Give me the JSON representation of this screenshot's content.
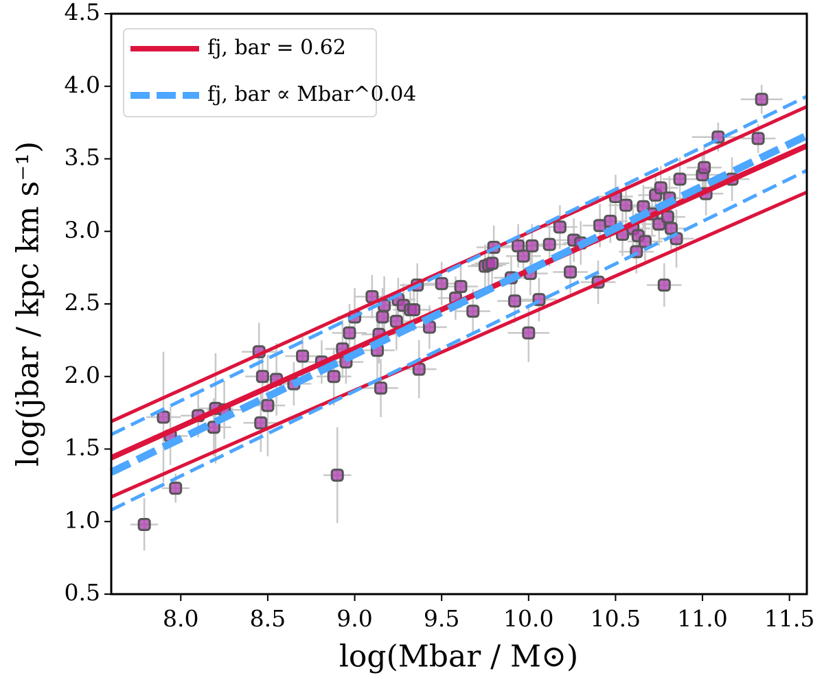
{
  "chart_data": {
    "type": "scatter",
    "xlabel": "log(Mbar / M⊙)",
    "ylabel": "log(jbar / kpc km s⁻¹)",
    "xlim": [
      7.6,
      11.6
    ],
    "ylim": [
      0.5,
      4.5
    ],
    "xticks": [
      {
        "value": 8,
        "label": "8.0"
      },
      8.5,
      {
        "value": 9,
        "label": "9.0"
      },
      9.5,
      {
        "value": 10,
        "label": "10.0"
      },
      10.5,
      {
        "value": 11,
        "label": "11.0"
      },
      11.5
    ],
    "yticks": [
      0.5,
      {
        "value": 1,
        "label": "1.0"
      },
      1.5,
      {
        "value": 2,
        "label": "2.0"
      },
      2.5,
      {
        "value": 3,
        "label": "3.0"
      },
      3.5,
      {
        "value": 4,
        "label": "4.0"
      },
      4.5
    ],
    "legend": "upper left",
    "points": {
      "color": "#b145b1",
      "edgecolor": "#555555",
      "errcolor": "#c8c8c8",
      "x": [
        7.79,
        7.9,
        7.94,
        7.97,
        8.1,
        8.19,
        8.2,
        8.25,
        8.45,
        8.46,
        8.47,
        8.5,
        8.55,
        8.65,
        8.7,
        8.81,
        8.88,
        8.9,
        8.93,
        8.95,
        8.97,
        9.0,
        9.1,
        9.13,
        9.14,
        9.15,
        9.16,
        9.17,
        9.24,
        9.25,
        9.28,
        9.32,
        9.34,
        9.36,
        9.37,
        9.43,
        9.5,
        9.58,
        9.61,
        9.68,
        9.75,
        9.77,
        9.79,
        9.8,
        9.9,
        9.92,
        9.94,
        9.97,
        10.0,
        10.01,
        10.02,
        10.06,
        10.12,
        10.18,
        10.24,
        10.26,
        10.3,
        10.4,
        10.41,
        10.47,
        10.5,
        10.54,
        10.56,
        10.6,
        10.62,
        10.63,
        10.66,
        10.67,
        10.71,
        10.73,
        10.75,
        10.76,
        10.78,
        10.8,
        10.81,
        10.82,
        10.85,
        10.87,
        11.0,
        11.01,
        11.02,
        11.09,
        11.17,
        11.32,
        11.34
      ],
      "y": [
        0.98,
        1.72,
        1.59,
        1.23,
        1.73,
        1.65,
        1.78,
        1.77,
        2.17,
        1.68,
        2.0,
        1.8,
        1.98,
        1.95,
        2.14,
        2.1,
        2.0,
        1.32,
        2.19,
        2.1,
        2.3,
        2.41,
        2.55,
        2.18,
        2.29,
        1.92,
        2.41,
        2.49,
        2.38,
        2.53,
        2.49,
        2.46,
        2.46,
        2.63,
        2.05,
        2.34,
        2.64,
        2.54,
        2.62,
        2.45,
        2.76,
        2.77,
        2.78,
        2.89,
        2.68,
        2.52,
        2.9,
        2.83,
        2.3,
        2.71,
        2.9,
        2.53,
        2.91,
        3.03,
        2.72,
        2.94,
        2.92,
        2.65,
        3.04,
        3.07,
        3.24,
        2.98,
        3.18,
        3.02,
        2.86,
        2.97,
        3.17,
        2.93,
        3.12,
        3.25,
        3.05,
        3.3,
        2.63,
        3.1,
        3.23,
        3.02,
        2.95,
        3.36,
        3.39,
        3.44,
        3.26,
        3.65,
        3.36,
        3.64,
        3.91
      ],
      "xerr": [
        0.08,
        0.1,
        0.1,
        0.08,
        0.1,
        0.1,
        0.1,
        0.1,
        0.1,
        0.1,
        0.1,
        0.1,
        0.1,
        0.1,
        0.1,
        0.1,
        0.1,
        0.08,
        0.1,
        0.1,
        0.1,
        0.1,
        0.1,
        0.1,
        0.1,
        0.1,
        0.1,
        0.1,
        0.1,
        0.1,
        0.1,
        0.1,
        0.1,
        0.1,
        0.1,
        0.1,
        0.1,
        0.1,
        0.1,
        0.1,
        0.1,
        0.1,
        0.1,
        0.1,
        0.1,
        0.1,
        0.1,
        0.1,
        0.12,
        0.1,
        0.1,
        0.1,
        0.1,
        0.1,
        0.1,
        0.1,
        0.1,
        0.1,
        0.1,
        0.1,
        0.1,
        0.1,
        0.1,
        0.1,
        0.1,
        0.1,
        0.1,
        0.1,
        0.1,
        0.1,
        0.1,
        0.1,
        0.1,
        0.1,
        0.1,
        0.1,
        0.1,
        0.1,
        0.1,
        0.1,
        0.1,
        0.15,
        0.1,
        0.1,
        0.12
      ],
      "yerr": [
        0.18,
        0.45,
        0.2,
        0.1,
        0.15,
        0.2,
        0.38,
        0.2,
        0.2,
        0.2,
        0.2,
        0.35,
        0.25,
        0.15,
        0.15,
        0.15,
        0.2,
        0.33,
        0.2,
        0.15,
        0.2,
        0.2,
        0.15,
        0.2,
        0.2,
        0.2,
        0.2,
        0.2,
        0.2,
        0.15,
        0.15,
        0.15,
        0.15,
        0.15,
        0.2,
        0.15,
        0.15,
        0.15,
        0.15,
        0.15,
        0.15,
        0.15,
        0.15,
        0.15,
        0.15,
        0.15,
        0.15,
        0.15,
        0.2,
        0.15,
        0.15,
        0.15,
        0.15,
        0.15,
        0.15,
        0.15,
        0.15,
        0.15,
        0.15,
        0.15,
        0.15,
        0.15,
        0.15,
        0.15,
        0.15,
        0.15,
        0.15,
        0.15,
        0.15,
        0.15,
        0.15,
        0.15,
        0.15,
        0.15,
        0.15,
        0.15,
        0.2,
        0.15,
        0.15,
        0.15,
        0.15,
        0.1,
        0.15,
        0.1,
        0.1
      ]
    },
    "lines": [
      {
        "name": "fj, bar = 0.62",
        "color": "#dc143c",
        "dash": false,
        "x": [
          7.6,
          11.6
        ],
        "values": [
          1.44,
          3.59
        ],
        "upper": [
          1.69,
          3.86
        ],
        "lower": [
          1.17,
          3.27
        ]
      },
      {
        "name": "fj, bar ∝ Mbar^0.04",
        "color": "#4da6ff",
        "dash": true,
        "x": [
          7.6,
          11.6
        ],
        "values": [
          1.34,
          3.66
        ],
        "upper": [
          1.6,
          3.93
        ],
        "lower": [
          1.08,
          3.42
        ]
      }
    ]
  }
}
